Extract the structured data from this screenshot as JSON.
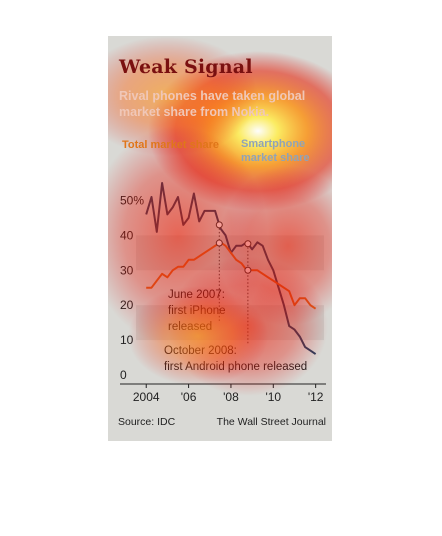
{
  "header": {
    "title": "Weak Signal",
    "subtitle": "Rival phones have taken global market share from Nokia."
  },
  "legend": {
    "total": "Total market share",
    "smartphone": "Smartphone market share"
  },
  "annotations": {
    "iphone": [
      "June 2007:",
      "first iPhone",
      "released"
    ],
    "android": [
      "October 2008:",
      "first Android phone released"
    ]
  },
  "footer": {
    "source": "Source: IDC",
    "credit": "The Wall Street Journal"
  },
  "colors": {
    "total_line": "#d9651e",
    "smartphone_line": "#283e5e",
    "title": "#7a1010",
    "band": "#cacac6"
  },
  "chart_data": {
    "type": "line",
    "title": "Weak Signal",
    "xlabel": "",
    "ylabel": "",
    "ylim": [
      0,
      55
    ],
    "xlim": [
      2003.8,
      2012.3
    ],
    "x_ticks": [
      {
        "value": 2004,
        "label": "2004"
      },
      {
        "value": 2006,
        "label": "'06"
      },
      {
        "value": 2008,
        "label": "'08"
      },
      {
        "value": 2010,
        "label": "'10"
      },
      {
        "value": 2012,
        "label": "'12"
      }
    ],
    "y_ticks": [
      {
        "value": 50,
        "label": "50%"
      },
      {
        "value": 40,
        "label": "40"
      },
      {
        "value": 30,
        "label": "30"
      },
      {
        "value": 20,
        "label": "20"
      },
      {
        "value": 10,
        "label": "10"
      },
      {
        "value": 0,
        "label": "0"
      }
    ],
    "series": [
      {
        "name": "Smartphone market share",
        "x": [
          2004.0,
          2004.25,
          2004.5,
          2004.75,
          2005.0,
          2005.25,
          2005.5,
          2005.75,
          2006.0,
          2006.25,
          2006.5,
          2006.75,
          2007.0,
          2007.25,
          2007.5,
          2007.75,
          2008.0,
          2008.25,
          2008.5,
          2008.75,
          2009.0,
          2009.25,
          2009.5,
          2009.75,
          2010.0,
          2010.25,
          2010.5,
          2010.75,
          2011.0,
          2011.25,
          2011.5,
          2011.75,
          2012.0
        ],
        "values": [
          46,
          51,
          41,
          55,
          46,
          48,
          51,
          43,
          45,
          52,
          44,
          47,
          47,
          47,
          42,
          40,
          35,
          37,
          37,
          38,
          36,
          38,
          37,
          33,
          30,
          25,
          20,
          14,
          13,
          11,
          8,
          7,
          6
        ]
      },
      {
        "name": "Total market share",
        "x": [
          2004.0,
          2004.25,
          2004.5,
          2004.75,
          2005.0,
          2005.25,
          2005.5,
          2005.75,
          2006.0,
          2006.25,
          2006.5,
          2006.75,
          2007.0,
          2007.25,
          2007.5,
          2007.75,
          2008.0,
          2008.25,
          2008.5,
          2008.75,
          2009.0,
          2009.25,
          2009.5,
          2009.75,
          2010.0,
          2010.25,
          2010.5,
          2010.75,
          2011.0,
          2011.25,
          2011.5,
          2011.75,
          2012.0
        ],
        "values": [
          25,
          25,
          27,
          29,
          28,
          30,
          31,
          31,
          33,
          33,
          34,
          35,
          36,
          37,
          38,
          37,
          35,
          33,
          32,
          30,
          30,
          30,
          29,
          28,
          27,
          26,
          25,
          24,
          20,
          22,
          22,
          20,
          19
        ]
      }
    ],
    "events": [
      {
        "x": 2007.45,
        "label": "June 2007: first iPhone released"
      },
      {
        "x": 2008.8,
        "label": "October 2008: first Android phone released"
      }
    ],
    "grid": false,
    "banded_background": true
  }
}
